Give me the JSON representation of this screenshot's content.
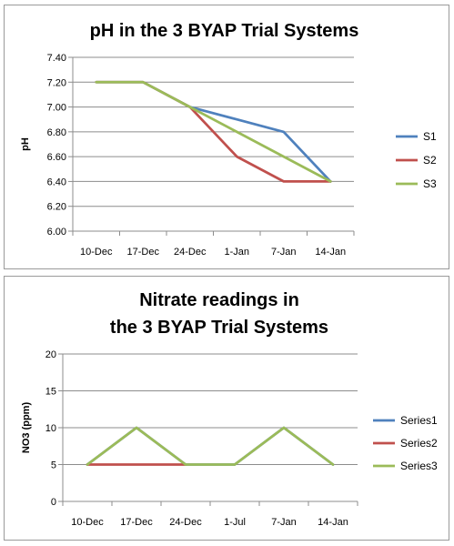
{
  "chart_data": [
    {
      "type": "line",
      "title": "pH in the 3 BYAP Trial Systems",
      "xlabel": "",
      "ylabel": "pH",
      "ylim": [
        6.0,
        7.4
      ],
      "ytick_step": 0.2,
      "yticks": [
        "6.00",
        "6.20",
        "6.40",
        "6.60",
        "6.80",
        "7.00",
        "7.20",
        "7.40"
      ],
      "categories": [
        "10-Dec",
        "17-Dec",
        "24-Dec",
        "1-Jan",
        "7-Jan",
        "14-Jan"
      ],
      "grid": true,
      "legend_position": "right",
      "series": [
        {
          "name": "S1",
          "color": "#4f81bd",
          "values": [
            7.2,
            7.2,
            7.0,
            6.9,
            6.8,
            6.4
          ]
        },
        {
          "name": "S2",
          "color": "#c0504d",
          "values": [
            7.2,
            7.2,
            7.0,
            6.6,
            6.4,
            6.4
          ]
        },
        {
          "name": "S3",
          "color": "#9bbb59",
          "values": [
            7.2,
            7.2,
            7.0,
            6.8,
            6.6,
            6.4
          ]
        }
      ]
    },
    {
      "type": "line",
      "title": "Nitrate readings in\nthe 3 BYAP Trial Systems",
      "title_lines": [
        "Nitrate readings in",
        "the 3 BYAP Trial Systems"
      ],
      "xlabel": "",
      "ylabel": "NO3 (ppm)",
      "ylim": [
        0,
        20
      ],
      "ytick_step": 5,
      "yticks": [
        "0",
        "5",
        "10",
        "15",
        "20"
      ],
      "categories": [
        "10-Dec",
        "17-Dec",
        "24-Dec",
        "1-Jul",
        "7-Jan",
        "14-Jan"
      ],
      "grid": true,
      "legend_position": "right",
      "series": [
        {
          "name": "Series1",
          "color": "#4f81bd",
          "values": [
            5,
            10,
            5,
            5,
            10,
            5
          ]
        },
        {
          "name": "Series2",
          "color": "#c0504d",
          "values": [
            5,
            5,
            5,
            null,
            null,
            null
          ]
        },
        {
          "name": "Series3",
          "color": "#9bbb59",
          "values": [
            5,
            10,
            5,
            5,
            10,
            5
          ]
        }
      ]
    }
  ]
}
